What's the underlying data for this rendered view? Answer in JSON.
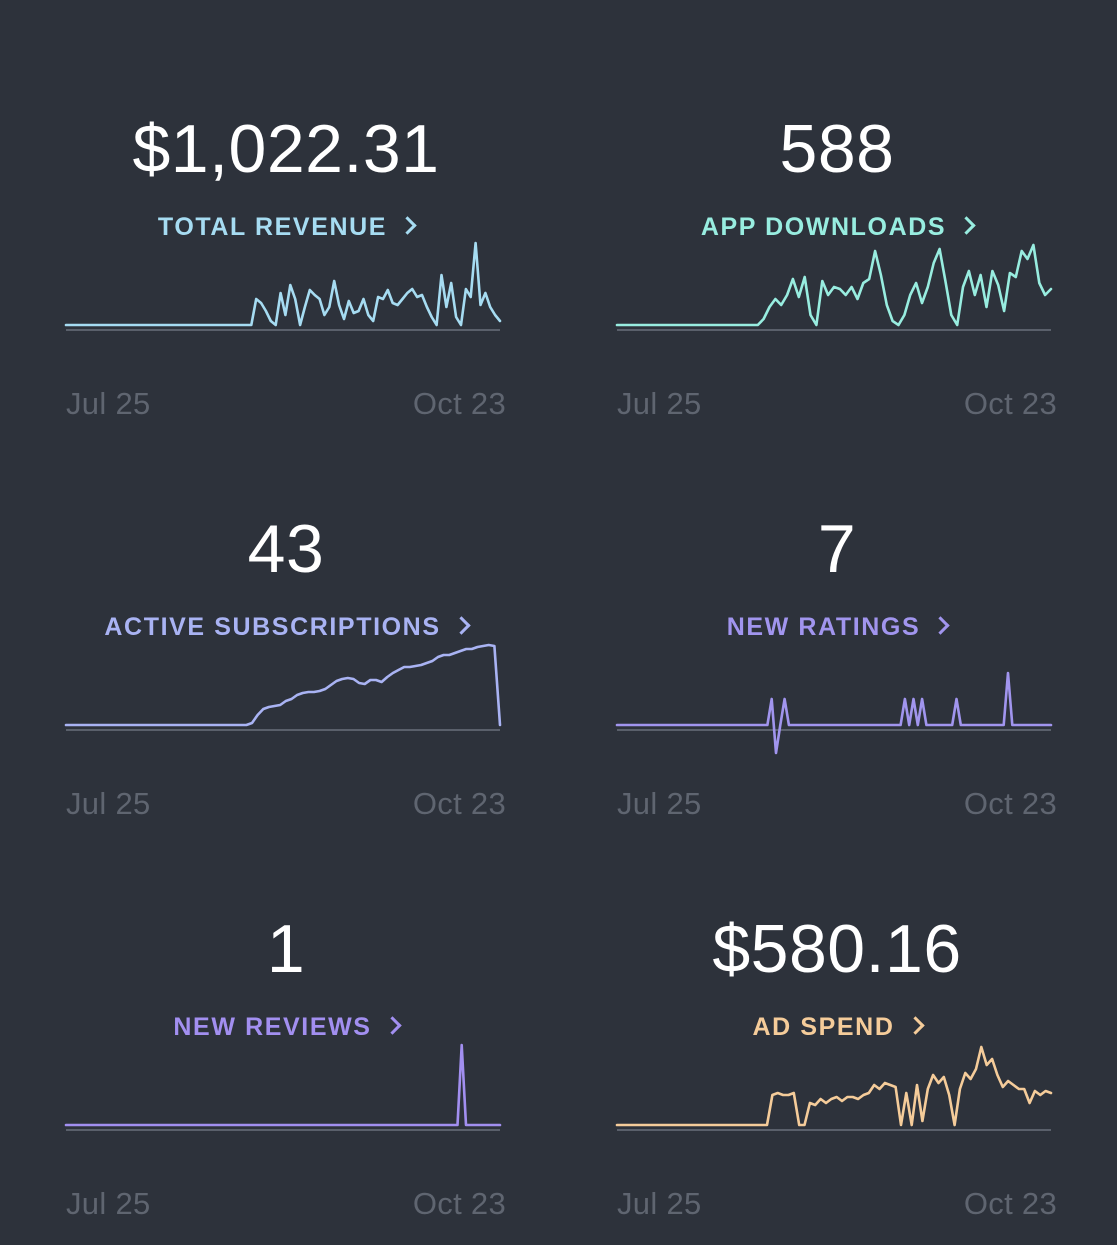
{
  "baseline_color": "#5a606b",
  "cards": [
    {
      "id": "revenue",
      "value": "$1,022.31",
      "label": "TOTAL REVENUE",
      "color": "#a6dcf2",
      "start_date": "Jul 25",
      "end_date": "Oct 23",
      "series": [
        0,
        0,
        0,
        0,
        0,
        0,
        0,
        0,
        0,
        0,
        0,
        0,
        0,
        0,
        0,
        0,
        0,
        0,
        0,
        0,
        0,
        0,
        0,
        0,
        0,
        0,
        0,
        0,
        0,
        0,
        0,
        0,
        0,
        0,
        0,
        0,
        0,
        0,
        0,
        26,
        22,
        14,
        4,
        0,
        32,
        10,
        40,
        26,
        0,
        18,
        35,
        30,
        26,
        10,
        18,
        44,
        20,
        6,
        24,
        12,
        14,
        26,
        10,
        4,
        28,
        26,
        35,
        22,
        20,
        26,
        32,
        36,
        28,
        30,
        18,
        8,
        0,
        50,
        18,
        42,
        8,
        0,
        36,
        28,
        82,
        20,
        32,
        18,
        10,
        4
      ]
    },
    {
      "id": "downloads",
      "value": "588",
      "label": "APP DOWNLOADS",
      "color": "#98ede0",
      "start_date": "Jul 25",
      "end_date": "Oct 23",
      "series": [
        0,
        0,
        0,
        0,
        0,
        0,
        0,
        0,
        0,
        0,
        0,
        0,
        0,
        0,
        0,
        0,
        0,
        0,
        0,
        0,
        0,
        0,
        0,
        0,
        0,
        6,
        18,
        26,
        20,
        30,
        46,
        28,
        48,
        10,
        0,
        44,
        30,
        38,
        36,
        30,
        38,
        26,
        42,
        46,
        74,
        50,
        20,
        4,
        0,
        10,
        30,
        42,
        22,
        38,
        62,
        76,
        44,
        10,
        0,
        38,
        54,
        30,
        50,
        18,
        54,
        40,
        14,
        52,
        48,
        74,
        66,
        80,
        42,
        30,
        36
      ]
    },
    {
      "id": "subscriptions",
      "value": "43",
      "label": "ACTIVE SUBSCRIPTIONS",
      "color": "#a9b3f3",
      "start_date": "Jul 25",
      "end_date": "Oct 23",
      "series": [
        0,
        0,
        0,
        0,
        0,
        0,
        0,
        0,
        0,
        0,
        0,
        0,
        0,
        0,
        0,
        0,
        0,
        0,
        0,
        0,
        0,
        0,
        0,
        0,
        0,
        0,
        0,
        0,
        0,
        0,
        0,
        0,
        0,
        2,
        10,
        16,
        18,
        19,
        20,
        24,
        26,
        30,
        32,
        33,
        33,
        34,
        36,
        40,
        44,
        46,
        47,
        46,
        42,
        41,
        45,
        45,
        43,
        48,
        52,
        55,
        58,
        58,
        59,
        60,
        62,
        64,
        68,
        70,
        70,
        72,
        74,
        76,
        76,
        78,
        79,
        80,
        79,
        0
      ]
    },
    {
      "id": "ratings",
      "value": "7",
      "label": "NEW RATINGS",
      "color": "#a195ee",
      "start_date": "Jul 25",
      "end_date": "Oct 23",
      "series": [
        0,
        0,
        0,
        0,
        0,
        0,
        0,
        0,
        0,
        0,
        0,
        0,
        0,
        0,
        0,
        0,
        0,
        0,
        0,
        0,
        0,
        0,
        0,
        0,
        0,
        0,
        0,
        0,
        0,
        0,
        0,
        0,
        0,
        0,
        0,
        0,
        26,
        -28,
        0,
        26,
        0,
        0,
        0,
        0,
        0,
        0,
        0,
        0,
        0,
        0,
        0,
        0,
        0,
        0,
        0,
        0,
        0,
        0,
        0,
        0,
        0,
        0,
        0,
        0,
        0,
        0,
        0,
        26,
        0,
        26,
        0,
        26,
        0,
        0,
        0,
        0,
        0,
        0,
        0,
        26,
        0,
        0,
        0,
        0,
        0,
        0,
        0,
        0,
        0,
        0,
        0,
        52,
        0,
        0,
        0,
        0,
        0,
        0,
        0,
        0,
        0,
        0
      ]
    },
    {
      "id": "reviews",
      "value": "1",
      "label": "NEW REVIEWS",
      "color": "#a28ff0",
      "start_date": "Jul 25",
      "end_date": "Oct 23",
      "series": [
        0,
        0,
        0,
        0,
        0,
        0,
        0,
        0,
        0,
        0,
        0,
        0,
        0,
        0,
        0,
        0,
        0,
        0,
        0,
        0,
        0,
        0,
        0,
        0,
        0,
        0,
        0,
        0,
        0,
        0,
        0,
        0,
        0,
        0,
        0,
        0,
        0,
        0,
        0,
        0,
        0,
        0,
        0,
        0,
        0,
        0,
        0,
        0,
        0,
        0,
        0,
        0,
        0,
        0,
        0,
        0,
        0,
        0,
        0,
        0,
        0,
        0,
        0,
        0,
        0,
        0,
        0,
        0,
        0,
        0,
        0,
        0,
        0,
        0,
        0,
        0,
        0,
        0,
        0,
        0,
        0,
        0,
        0,
        0,
        0,
        0,
        0,
        0,
        0,
        0,
        0,
        0,
        0,
        80,
        0,
        0,
        0,
        0,
        0,
        0,
        0,
        0,
        0
      ]
    },
    {
      "id": "adspend",
      "value": "$580.16",
      "label": "AD SPEND",
      "color": "#f5cc9a",
      "start_date": "Jul 25",
      "end_date": "Oct 23",
      "series": [
        0,
        0,
        0,
        0,
        0,
        0,
        0,
        0,
        0,
        0,
        0,
        0,
        0,
        0,
        0,
        0,
        0,
        0,
        0,
        0,
        0,
        0,
        0,
        0,
        0,
        0,
        0,
        0,
        0,
        30,
        32,
        30,
        30,
        32,
        0,
        0,
        22,
        20,
        26,
        22,
        26,
        28,
        24,
        28,
        28,
        26,
        30,
        32,
        40,
        36,
        42,
        40,
        38,
        0,
        32,
        0,
        40,
        4,
        36,
        50,
        42,
        48,
        30,
        0,
        36,
        52,
        46,
        56,
        78,
        60,
        66,
        50,
        38,
        44,
        40,
        36,
        36,
        22,
        34,
        30,
        34,
        32
      ]
    }
  ]
}
